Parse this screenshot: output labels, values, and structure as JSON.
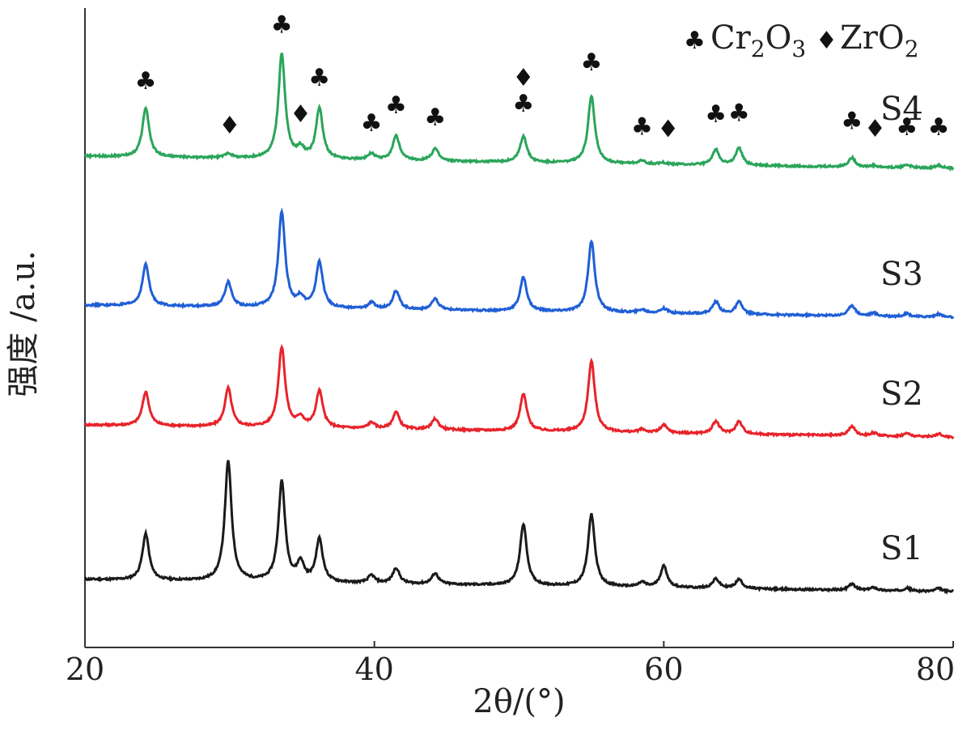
{
  "chart_data": {
    "type": "line",
    "xlabel": "2θ/(°)",
    "ylabel": "强度 /a.u.",
    "xlim": [
      20,
      80
    ],
    "x_ticks": [
      "20",
      "40",
      "60",
      "80"
    ],
    "y_ticks": [],
    "grid": false,
    "legend": {
      "placement": "top-right",
      "entries": [
        {
          "symbol": "club-icon",
          "label": "Cr2O3"
        },
        {
          "symbol": "diamond-icon",
          "label": "ZrO2"
        }
      ]
    },
    "marker_symbols": {
      "Cr2O3": "♣",
      "ZrO2": "♦"
    },
    "series": [
      {
        "name": "S1",
        "color": "#1a1a1a",
        "baseline": 0.0,
        "x": [
          20,
          24.2,
          29.9,
          33.6,
          34.9,
          36.2,
          39.8,
          41.5,
          44.2,
          50.3,
          55.0,
          58.5,
          60.0,
          63.6,
          65.2,
          73.0,
          74.5,
          76.8,
          79.0,
          80
        ],
        "y": [
          0.0,
          0.3,
          0.78,
          0.65,
          0.12,
          0.28,
          0.05,
          0.1,
          0.07,
          0.4,
          0.47,
          0.03,
          0.14,
          0.06,
          0.06,
          0.04,
          0.02,
          0.02,
          0.02,
          0.0
        ]
      },
      {
        "name": "S2",
        "color": "#e8232a",
        "baseline": 0.75,
        "x": [
          20,
          24.2,
          29.9,
          33.6,
          34.9,
          36.2,
          39.8,
          41.5,
          44.2,
          50.3,
          55.0,
          58.5,
          60.0,
          63.6,
          65.2,
          73.0,
          74.5,
          76.8,
          79.0,
          80
        ],
        "y": [
          0.0,
          0.22,
          0.25,
          0.52,
          0.06,
          0.24,
          0.04,
          0.11,
          0.07,
          0.24,
          0.46,
          0.02,
          0.05,
          0.08,
          0.08,
          0.06,
          0.02,
          0.02,
          0.02,
          0.0
        ]
      },
      {
        "name": "S3",
        "color": "#1f5fd6",
        "baseline": 1.5,
        "x": [
          20,
          24.2,
          29.9,
          33.6,
          34.9,
          36.2,
          39.8,
          41.5,
          44.2,
          50.3,
          55.0,
          58.5,
          60.0,
          63.6,
          65.2,
          73.0,
          74.5,
          76.8,
          79.0,
          80
        ],
        "y": [
          0.0,
          0.27,
          0.16,
          0.62,
          0.06,
          0.3,
          0.04,
          0.12,
          0.07,
          0.22,
          0.46,
          0.02,
          0.03,
          0.08,
          0.08,
          0.07,
          0.02,
          0.02,
          0.02,
          0.0
        ]
      },
      {
        "name": "S4",
        "color": "#2aa55a",
        "baseline": 2.25,
        "x": [
          20,
          24.2,
          29.9,
          33.6,
          34.9,
          36.2,
          39.8,
          41.5,
          44.2,
          50.3,
          55.0,
          58.5,
          60.0,
          63.6,
          65.2,
          73.0,
          74.5,
          76.8,
          79.0,
          80
        ],
        "y": [
          0.0,
          0.32,
          0.03,
          0.68,
          0.06,
          0.33,
          0.04,
          0.16,
          0.08,
          0.17,
          0.44,
          0.02,
          0.01,
          0.1,
          0.11,
          0.06,
          0.01,
          0.02,
          0.02,
          0.0
        ]
      }
    ],
    "annotations": [
      {
        "symbol": "♣",
        "x": 24.2,
        "row": 0
      },
      {
        "symbol": "♦",
        "x": 30.0,
        "row": 2
      },
      {
        "symbol": "♣",
        "x": 33.6,
        "row": -1
      },
      {
        "symbol": "♦",
        "x": 34.9,
        "row": 2
      },
      {
        "symbol": "♣",
        "x": 36.2,
        "row": 0
      },
      {
        "symbol": "♣",
        "x": 39.8,
        "row": 2
      },
      {
        "symbol": "♣",
        "x": 41.5,
        "row": 1
      },
      {
        "symbol": "♣",
        "x": 44.2,
        "row": 1.5
      },
      {
        "symbol": "♦",
        "x": 50.3,
        "row": 0.3
      },
      {
        "symbol": "♣",
        "x": 50.3,
        "row": 1.2
      },
      {
        "symbol": "♣",
        "x": 55.0,
        "row": -0.6
      },
      {
        "symbol": "♣",
        "x": 58.5,
        "row": 2.6
      },
      {
        "symbol": "♦",
        "x": 60.3,
        "row": 2.6
      },
      {
        "symbol": "♣",
        "x": 63.6,
        "row": 1.8
      },
      {
        "symbol": "♣",
        "x": 65.2,
        "row": 1.5
      },
      {
        "symbol": "♣",
        "x": 73.0,
        "row": 2.2
      },
      {
        "symbol": "♦",
        "x": 74.6,
        "row": 2.6
      },
      {
        "symbol": "♣",
        "x": 76.8,
        "row": 2.6
      },
      {
        "symbol": "♣",
        "x": 79.0,
        "row": 2.6
      }
    ]
  }
}
